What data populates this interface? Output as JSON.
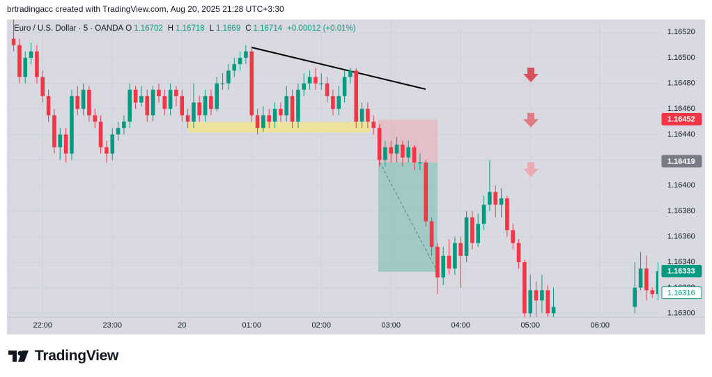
{
  "attribution": "brtradingacc created with TradingView.com, Aug 20, 2025 21:28 UTC+3:30",
  "logo": "TradingView",
  "chart_data": {
    "type": "candlestick",
    "title": "Euro / U.S. Dollar · 5 · OANDA",
    "ohlc_legend": [
      {
        "key": "O",
        "value": 1.16702
      },
      {
        "key": "H",
        "value": 1.16718
      },
      {
        "key": "L",
        "value": 1.1669
      },
      {
        "key": "C",
        "value": 1.16714
      }
    ],
    "change": "+0.00012 (+0.01%)",
    "up_color": "#089981",
    "down_color": "#f23645",
    "categories": [
      null,
      null,
      null,
      null,
      null,
      "22:00",
      null,
      null,
      null,
      null,
      null,
      null,
      null,
      null,
      null,
      null,
      null,
      "23:00",
      null,
      null,
      null,
      null,
      null,
      null,
      null,
      null,
      null,
      null,
      null,
      "20",
      null,
      null,
      null,
      null,
      null,
      null,
      null,
      null,
      null,
      null,
      null,
      "01:00",
      null,
      null,
      null,
      null,
      null,
      null,
      null,
      null,
      null,
      null,
      null,
      "02:00",
      null,
      null,
      null,
      null,
      null,
      null,
      null,
      null,
      null,
      null,
      null,
      "03:00",
      null,
      null,
      null,
      null,
      null,
      null,
      null,
      null,
      null,
      null,
      null,
      "04:00",
      null,
      null,
      null,
      null,
      null,
      null,
      null,
      null,
      null,
      null,
      null,
      "05:00",
      null,
      null,
      null,
      null,
      null,
      null,
      null,
      null,
      null,
      null,
      null,
      "06:00",
      null,
      null,
      null,
      null,
      null,
      null,
      null,
      null,
      null,
      null
    ],
    "open": [
      1.16515,
      1.1651,
      1.16485,
      1.165,
      1.16505,
      1.16485,
      1.1647,
      1.16455,
      1.1643,
      1.1644,
      1.16425,
      1.1647,
      1.1646,
      1.16475,
      1.16455,
      1.1645,
      1.1643,
      1.16425,
      1.1644,
      1.16445,
      1.1645,
      1.16475,
      1.16465,
      1.1647,
      1.16455,
      1.16475,
      1.1647,
      1.1646,
      1.16475,
      1.1647,
      1.16455,
      1.1645,
      1.16465,
      1.16455,
      1.1647,
      1.1646,
      1.1648,
      1.1648,
      1.1649,
      1.16495,
      1.165,
      1.16505,
      1.16455,
      1.16445,
      1.16455,
      1.1645,
      1.1646,
      1.16455,
      1.1647,
      1.1645,
      1.16475,
      1.1648,
      1.16485,
      1.1648,
      1.1648,
      1.1647,
      1.1646,
      1.1647,
      1.16485,
      1.1649,
      1.1645,
      1.1646,
      1.1645,
      1.16445,
      1.1642,
      1.1643,
      1.16425,
      1.16432,
      1.16422,
      1.1643,
      1.16418,
      1.16418,
      1.16372,
      1.16352,
      1.16328,
      1.16345,
      1.16335,
      1.16355,
      1.16345,
      1.16375,
      1.16355,
      1.1637,
      1.16385,
      1.16395,
      1.16385,
      1.1639,
      1.16365,
      1.16355,
      1.1634,
      1.163,
      1.16318,
      1.1631,
      1.16318,
      1.163,
      null,
      null,
      null,
      null,
      null,
      null,
      null,
      null,
      null,
      null,
      null,
      null,
      null,
      1.16305,
      1.1632,
      1.16335,
      1.16318,
      1.16315
    ],
    "high": [
      1.1653,
      1.16515,
      1.16505,
      1.16512,
      1.1651,
      1.1649,
      1.16475,
      1.1646,
      1.16445,
      1.16445,
      1.16475,
      1.16478,
      1.1648,
      1.16478,
      1.1646,
      1.16455,
      1.16435,
      1.16445,
      1.1645,
      1.16455,
      1.1648,
      1.16478,
      1.16478,
      1.16475,
      1.16478,
      1.1648,
      1.16475,
      1.1648,
      1.16478,
      1.16475,
      1.1646,
      1.1648,
      1.1647,
      1.16475,
      1.16475,
      1.16485,
      1.16488,
      1.16495,
      1.165,
      1.16505,
      1.1651,
      1.16508,
      1.1646,
      1.16462,
      1.1646,
      1.16465,
      1.16465,
      1.16478,
      1.16475,
      1.1648,
      1.16488,
      1.1649,
      1.16492,
      1.16488,
      1.16485,
      1.16475,
      1.16478,
      1.1649,
      1.16492,
      1.16492,
      1.16465,
      1.16465,
      1.16455,
      1.16448,
      1.16435,
      1.16435,
      1.16438,
      1.16435,
      1.16435,
      1.16432,
      1.16425,
      1.1642,
      1.16375,
      1.16355,
      1.16352,
      1.16358,
      1.1636,
      1.1636,
      1.1638,
      1.1638,
      1.16378,
      1.16392,
      1.1642,
      1.164,
      1.16398,
      1.16392,
      1.1637,
      1.16358,
      1.16342,
      1.1633,
      1.16325,
      1.1633,
      1.16322,
      1.1632,
      null,
      null,
      null,
      null,
      null,
      null,
      null,
      null,
      null,
      null,
      null,
      null,
      null,
      1.1634,
      1.16348,
      1.16345,
      1.1632,
      1.1634
    ],
    "low": [
      1.16505,
      1.1648,
      1.1648,
      1.16495,
      1.1648,
      1.16465,
      1.1645,
      1.16425,
      1.1642,
      1.16418,
      1.1642,
      1.16455,
      1.16455,
      1.1645,
      1.16445,
      1.16425,
      1.16418,
      1.1642,
      1.16435,
      1.1644,
      1.16445,
      1.1646,
      1.16462,
      1.1645,
      1.1645,
      1.16465,
      1.16455,
      1.16455,
      1.16462,
      1.1645,
      1.16445,
      1.16445,
      1.1645,
      1.1645,
      1.16455,
      1.16458,
      1.16475,
      1.16475,
      1.16485,
      1.1649,
      1.16495,
      1.1645,
      1.1644,
      1.16442,
      1.16445,
      1.16445,
      1.1645,
      1.1645,
      1.16445,
      1.16445,
      1.1647,
      1.16475,
      1.16475,
      1.16475,
      1.16465,
      1.16455,
      1.16455,
      1.16465,
      1.1648,
      1.16445,
      1.16445,
      1.16445,
      1.1644,
      1.16415,
      1.16415,
      1.16418,
      1.16418,
      1.16415,
      1.16418,
      1.16412,
      1.16412,
      1.16368,
      1.16345,
      1.16315,
      1.16322,
      1.1633,
      1.1633,
      1.1632,
      1.1634,
      1.1635,
      1.16352,
      1.16365,
      1.1638,
      1.16375,
      1.16375,
      1.1636,
      1.1635,
      1.16335,
      1.1629,
      1.16295,
      1.16295,
      1.163,
      1.1629,
      1.16295,
      null,
      null,
      null,
      null,
      null,
      null,
      null,
      null,
      null,
      null,
      null,
      null,
      null,
      1.163,
      1.16318,
      1.1631,
      1.16312,
      1.1631
    ],
    "close": [
      1.1651,
      1.16485,
      1.165,
      1.16505,
      1.16485,
      1.1647,
      1.16455,
      1.1643,
      1.1644,
      1.16425,
      1.1647,
      1.1646,
      1.16475,
      1.16455,
      1.1645,
      1.1643,
      1.16425,
      1.1644,
      1.16445,
      1.1645,
      1.16475,
      1.16465,
      1.1647,
      1.16455,
      1.16475,
      1.1647,
      1.1646,
      1.16475,
      1.1647,
      1.16455,
      1.1645,
      1.16465,
      1.16455,
      1.1647,
      1.1646,
      1.1648,
      1.1648,
      1.1649,
      1.16495,
      1.165,
      1.16505,
      1.16455,
      1.16445,
      1.16455,
      1.1645,
      1.1646,
      1.16455,
      1.1647,
      1.1645,
      1.16475,
      1.1648,
      1.16485,
      1.1648,
      1.1648,
      1.1647,
      1.1646,
      1.1647,
      1.16485,
      1.1649,
      1.1645,
      1.1646,
      1.1645,
      1.16445,
      1.1642,
      1.1643,
      1.16425,
      1.16432,
      1.16422,
      1.1643,
      1.16418,
      1.16418,
      1.16372,
      1.16352,
      1.16328,
      1.16345,
      1.16335,
      1.16355,
      1.16345,
      1.16375,
      1.16355,
      1.1637,
      1.16385,
      1.16395,
      1.16385,
      1.1639,
      1.16365,
      1.16355,
      1.1634,
      1.163,
      1.16318,
      1.1631,
      1.16318,
      1.163,
      1.16305,
      null,
      null,
      null,
      null,
      null,
      null,
      null,
      null,
      null,
      null,
      null,
      null,
      null,
      1.1632,
      1.16335,
      1.16318,
      1.16315,
      1.16333
    ],
    "ylim": [
      1.16297,
      1.1653
    ],
    "yticks": [
      {
        "value": 1.163,
        "label": "1.16300"
      },
      {
        "value": 1.1632,
        "label": "1.16320"
      },
      {
        "value": 1.1634,
        "label": "1.16340"
      },
      {
        "value": 1.1636,
        "label": "1.16360"
      },
      {
        "value": 1.1638,
        "label": "1.16380"
      },
      {
        "value": 1.164,
        "label": "1.16400"
      },
      {
        "value": 1.1642,
        "label": "1.16420"
      },
      {
        "value": 1.1644,
        "label": "1.16440"
      },
      {
        "value": 1.1646,
        "label": "1.16460"
      },
      {
        "value": 1.1648,
        "label": "1.16480"
      },
      {
        "value": 1.165,
        "label": "1.16500"
      },
      {
        "value": 1.1652,
        "label": "1.16520"
      }
    ],
    "price_labels": [
      {
        "value": 1.16452,
        "color": "#f23645",
        "outlined": false
      },
      {
        "value": 1.16419,
        "color": "#787b86",
        "outlined": false
      },
      {
        "value": 1.16333,
        "color": "#089981",
        "outlined": false
      },
      {
        "value": 1.16316,
        "color": "#089981",
        "outlined": true
      }
    ]
  }
}
